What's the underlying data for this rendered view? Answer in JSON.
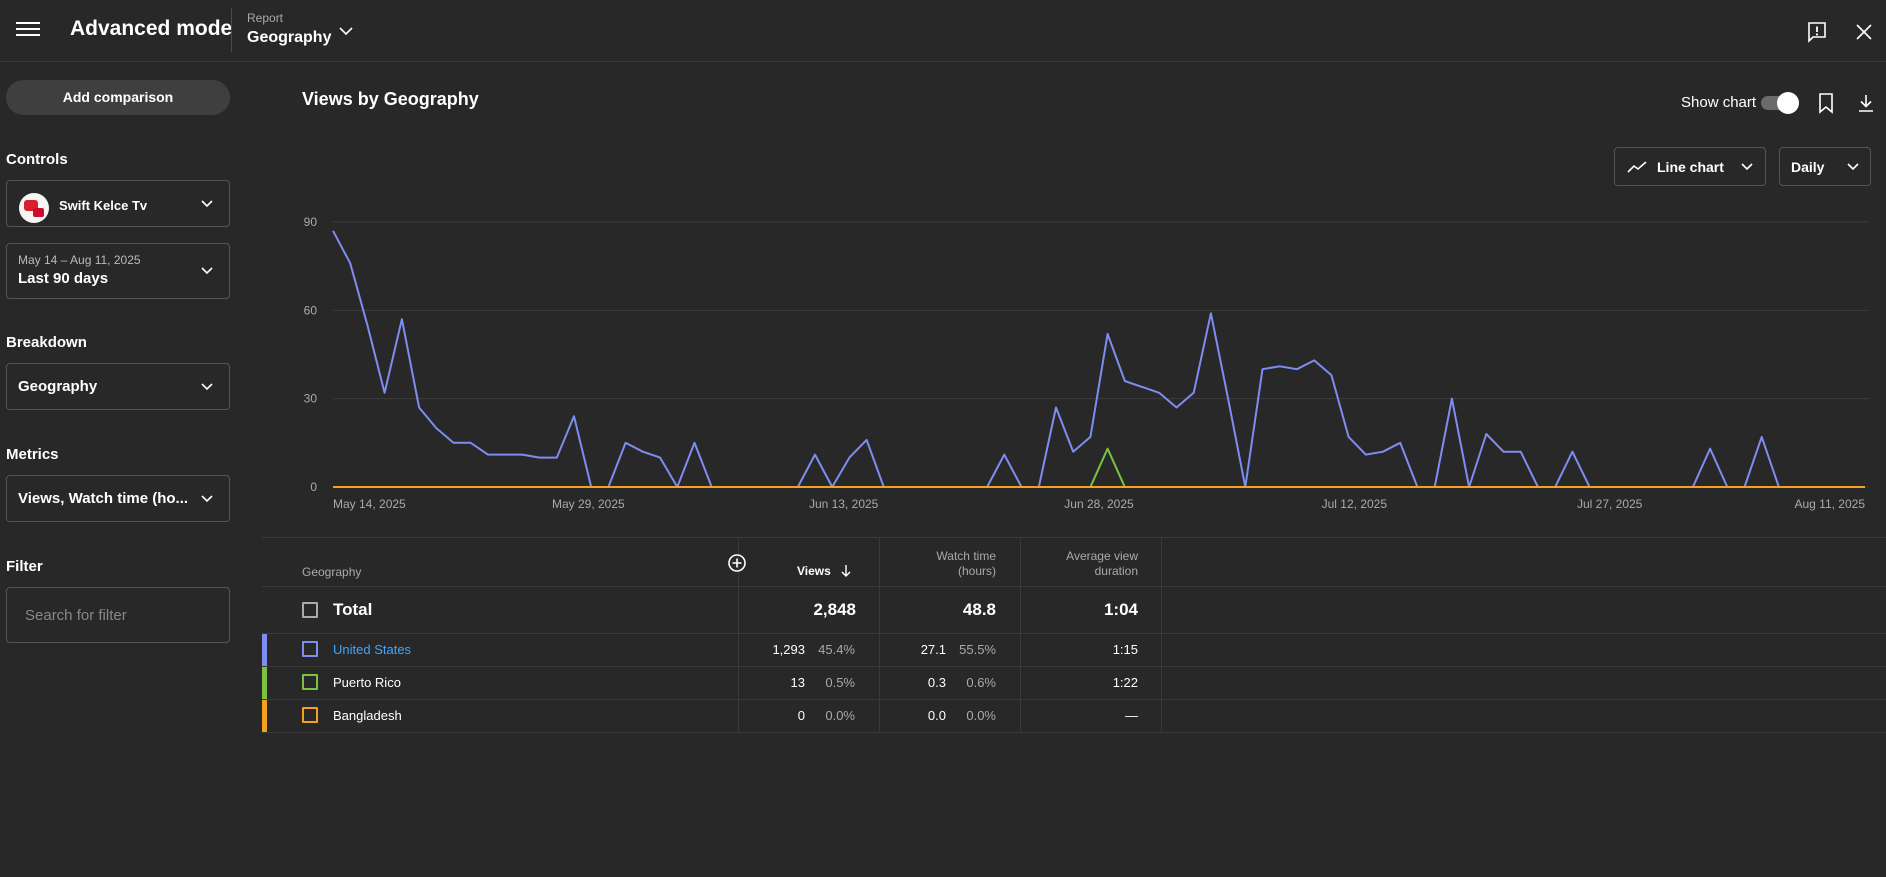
{
  "header": {
    "title": "Advanced mode",
    "report_caption": "Report",
    "report_value": "Geography"
  },
  "sidebar": {
    "add_comparison": "Add comparison",
    "controls_heading": "Controls",
    "channel_name": "Swift Kelce Tv",
    "date_range_caption": "May 14 – Aug 11, 2025",
    "date_range_value": "Last 90 days",
    "breakdown_heading": "Breakdown",
    "breakdown_value": "Geography",
    "metrics_heading": "Metrics",
    "metrics_value": "Views, Watch time (ho...",
    "filter_heading": "Filter",
    "filter_placeholder": "Search for filter"
  },
  "main": {
    "title": "Views by Geography",
    "show_chart_label": "Show chart",
    "show_chart_on": true,
    "chart_type_label": "Line chart",
    "granularity_label": "Daily"
  },
  "chart_data": {
    "type": "line",
    "x_tick_labels": [
      "May 14, 2025",
      "May 29, 2025",
      "Jun 13, 2025",
      "Jun 28, 2025",
      "Jul 12, 2025",
      "Jul 27, 2025",
      "Aug 11, 2025"
    ],
    "y_ticks": [
      0,
      30,
      60,
      90
    ],
    "ylim": [
      0,
      90
    ],
    "xlim": [
      "2025-05-14",
      "2025-08-11"
    ],
    "grid": true,
    "series": [
      {
        "name": "United States",
        "color": "#7d8df0",
        "points": [
          [
            "2025-05-14",
            87
          ],
          [
            "2025-05-15",
            76
          ],
          [
            "2025-05-16",
            55
          ],
          [
            "2025-05-17",
            32
          ],
          [
            "2025-05-18",
            57
          ],
          [
            "2025-05-19",
            27
          ],
          [
            "2025-05-20",
            20
          ],
          [
            "2025-05-21",
            15
          ],
          [
            "2025-05-22",
            15
          ],
          [
            "2025-05-23",
            11
          ],
          [
            "2025-05-24",
            11
          ],
          [
            "2025-05-25",
            11
          ],
          [
            "2025-05-26",
            10
          ],
          [
            "2025-05-27",
            10
          ],
          [
            "2025-05-28",
            24
          ],
          [
            "2025-05-29",
            0
          ],
          [
            "2025-05-30",
            0
          ],
          [
            "2025-05-31",
            15
          ],
          [
            "2025-06-01",
            12
          ],
          [
            "2025-06-02",
            10
          ],
          [
            "2025-06-03",
            0
          ],
          [
            "2025-06-04",
            15
          ],
          [
            "2025-06-05",
            0
          ],
          [
            "2025-06-10",
            0
          ],
          [
            "2025-06-11",
            11
          ],
          [
            "2025-06-12",
            0
          ],
          [
            "2025-06-13",
            10
          ],
          [
            "2025-06-14",
            16
          ],
          [
            "2025-06-15",
            0
          ],
          [
            "2025-06-21",
            0
          ],
          [
            "2025-06-22",
            11
          ],
          [
            "2025-06-23",
            0
          ],
          [
            "2025-06-24",
            0
          ],
          [
            "2025-06-25",
            27
          ],
          [
            "2025-06-26",
            12
          ],
          [
            "2025-06-27",
            17
          ],
          [
            "2025-06-28",
            52
          ],
          [
            "2025-06-29",
            36
          ],
          [
            "2025-06-30",
            34
          ],
          [
            "2025-07-01",
            32
          ],
          [
            "2025-07-02",
            27
          ],
          [
            "2025-07-03",
            32
          ],
          [
            "2025-07-04",
            59
          ],
          [
            "2025-07-05",
            30
          ],
          [
            "2025-07-06",
            0
          ],
          [
            "2025-07-07",
            40
          ],
          [
            "2025-07-08",
            41
          ],
          [
            "2025-07-09",
            40
          ],
          [
            "2025-07-10",
            43
          ],
          [
            "2025-07-11",
            38
          ],
          [
            "2025-07-12",
            17
          ],
          [
            "2025-07-13",
            11
          ],
          [
            "2025-07-14",
            12
          ],
          [
            "2025-07-15",
            15
          ],
          [
            "2025-07-16",
            0
          ],
          [
            "2025-07-17",
            0
          ],
          [
            "2025-07-18",
            30
          ],
          [
            "2025-07-19",
            0
          ],
          [
            "2025-07-20",
            18
          ],
          [
            "2025-07-21",
            12
          ],
          [
            "2025-07-22",
            12
          ],
          [
            "2025-07-23",
            0
          ],
          [
            "2025-07-24",
            0
          ],
          [
            "2025-07-25",
            12
          ],
          [
            "2025-07-26",
            0
          ],
          [
            "2025-08-01",
            0
          ],
          [
            "2025-08-02",
            13
          ],
          [
            "2025-08-03",
            0
          ],
          [
            "2025-08-04",
            0
          ],
          [
            "2025-08-05",
            17
          ],
          [
            "2025-08-06",
            0
          ],
          [
            "2025-08-11",
            0
          ]
        ]
      },
      {
        "name": "Puerto Rico",
        "color": "#7cc242",
        "points": [
          [
            "2025-05-14",
            0
          ],
          [
            "2025-06-27",
            0
          ],
          [
            "2025-06-28",
            13
          ],
          [
            "2025-06-29",
            0
          ],
          [
            "2025-08-11",
            0
          ]
        ]
      },
      {
        "name": "Bangladesh",
        "color": "#f3a023",
        "points": [
          [
            "2025-05-14",
            0
          ],
          [
            "2025-08-11",
            0
          ]
        ]
      }
    ]
  },
  "table": {
    "headers": {
      "geography": "Geography",
      "views": "Views",
      "watch_time": "Watch time (hours)",
      "avg_view_duration": "Average view duration"
    },
    "total": {
      "label": "Total",
      "views": "2,848",
      "watch_time": "48.8",
      "avg_view_duration": "1:04"
    },
    "rows": [
      {
        "name": "United States",
        "color": "#7d8df0",
        "views": "1,293",
        "views_pct": "45.4%",
        "watch_time": "27.1",
        "watch_time_pct": "55.5%",
        "avg_view_duration": "1:15"
      },
      {
        "name": "Puerto Rico",
        "color": "#7cc242",
        "views": "13",
        "views_pct": "0.5%",
        "watch_time": "0.3",
        "watch_time_pct": "0.6%",
        "avg_view_duration": "1:22"
      },
      {
        "name": "Bangladesh",
        "color": "#f3a023",
        "views": "0",
        "views_pct": "0.0%",
        "watch_time": "0.0",
        "watch_time_pct": "0.0%",
        "avg_view_duration": "—"
      }
    ]
  }
}
